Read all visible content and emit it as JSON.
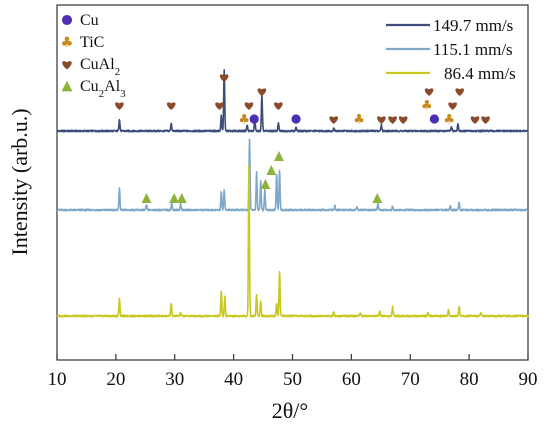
{
  "chart_data": {
    "type": "line",
    "title": "",
    "xlabel": "2θ/°",
    "ylabel": "Intensity (arb.u.)",
    "xlim": [
      10,
      90
    ],
    "x_ticks": [
      "10",
      "20",
      "30",
      "40",
      "50",
      "60",
      "70",
      "80",
      "90"
    ],
    "grid": false,
    "legend_position": "top-right",
    "series": [
      {
        "name": "149.7 mm/s",
        "color": "#3d4d7a",
        "peaks": [
          {
            "x": 20.6,
            "h": 12
          },
          {
            "x": 29.4,
            "h": 8
          },
          {
            "x": 37.9,
            "h": 15
          },
          {
            "x": 38.4,
            "h": 62
          },
          {
            "x": 42.3,
            "h": 6
          },
          {
            "x": 43.6,
            "h": 12
          },
          {
            "x": 44.8,
            "h": 36
          },
          {
            "x": 47.6,
            "h": 8
          },
          {
            "x": 50.6,
            "h": 4
          },
          {
            "x": 57.0,
            "h": 3
          },
          {
            "x": 65.1,
            "h": 6
          },
          {
            "x": 77.0,
            "h": 4
          },
          {
            "x": 78.1,
            "h": 7
          }
        ]
      },
      {
        "name": "115.1 mm/s",
        "color": "#7fa8c8",
        "peaks": [
          {
            "x": 20.6,
            "h": 22
          },
          {
            "x": 25.2,
            "h": 5
          },
          {
            "x": 29.5,
            "h": 7
          },
          {
            "x": 31.0,
            "h": 6
          },
          {
            "x": 37.9,
            "h": 18
          },
          {
            "x": 38.4,
            "h": 20
          },
          {
            "x": 42.7,
            "h": 70
          },
          {
            "x": 43.9,
            "h": 38
          },
          {
            "x": 44.6,
            "h": 30
          },
          {
            "x": 45.3,
            "h": 20
          },
          {
            "x": 47.3,
            "h": 36
          },
          {
            "x": 47.8,
            "h": 40
          },
          {
            "x": 57.2,
            "h": 4
          },
          {
            "x": 60.9,
            "h": 3
          },
          {
            "x": 64.5,
            "h": 6
          },
          {
            "x": 67.0,
            "h": 4
          },
          {
            "x": 76.8,
            "h": 5
          },
          {
            "x": 78.3,
            "h": 8
          }
        ]
      },
      {
        "name": "86.4 mm/s",
        "color": "#c8c820",
        "peaks": [
          {
            "x": 20.6,
            "h": 18
          },
          {
            "x": 29.4,
            "h": 13
          },
          {
            "x": 31.0,
            "h": 3
          },
          {
            "x": 37.9,
            "h": 25
          },
          {
            "x": 38.5,
            "h": 19
          },
          {
            "x": 42.6,
            "h": 150
          },
          {
            "x": 43.9,
            "h": 22
          },
          {
            "x": 44.6,
            "h": 15
          },
          {
            "x": 47.3,
            "h": 13
          },
          {
            "x": 47.8,
            "h": 45
          },
          {
            "x": 57.0,
            "h": 4
          },
          {
            "x": 61.5,
            "h": 3
          },
          {
            "x": 64.8,
            "h": 5
          },
          {
            "x": 67.0,
            "h": 9
          },
          {
            "x": 73.0,
            "h": 4
          },
          {
            "x": 76.5,
            "h": 6
          },
          {
            "x": 78.3,
            "h": 10
          },
          {
            "x": 82.0,
            "h": 3
          }
        ]
      }
    ],
    "phase_legend": [
      {
        "name": "Cu",
        "symbol": "circle",
        "color": "#4b2fb5"
      },
      {
        "name": "TiC",
        "symbol": "club",
        "color": "#c78a1e"
      },
      {
        "name": "CuAl2",
        "symbol": "heart",
        "color": "#8b4a2b"
      },
      {
        "name": "Cu2Al3",
        "symbol": "triangle",
        "color": "#8db33a"
      }
    ],
    "phase_markers": [
      {
        "series": 0,
        "phase": "CuAl2",
        "x": 20.6,
        "level": 1
      },
      {
        "series": 0,
        "phase": "CuAl2",
        "x": 29.4,
        "level": 1
      },
      {
        "series": 0,
        "phase": "CuAl2",
        "x": 37.6,
        "level": 1
      },
      {
        "series": 0,
        "phase": "CuAl2",
        "x": 38.4,
        "level": 3
      },
      {
        "series": 0,
        "phase": "TiC",
        "x": 41.8,
        "level": 0
      },
      {
        "series": 0,
        "phase": "CuAl2",
        "x": 42.6,
        "level": 1
      },
      {
        "series": 0,
        "phase": "Cu",
        "x": 43.5,
        "level": 0
      },
      {
        "series": 0,
        "phase": "CuAl2",
        "x": 44.8,
        "level": 2
      },
      {
        "series": 0,
        "phase": "CuAl2",
        "x": 47.6,
        "level": 1
      },
      {
        "series": 0,
        "phase": "Cu",
        "x": 50.6,
        "level": 0
      },
      {
        "series": 0,
        "phase": "CuAl2",
        "x": 57.0,
        "level": 0
      },
      {
        "series": 0,
        "phase": "TiC",
        "x": 61.3,
        "level": 0
      },
      {
        "series": 0,
        "phase": "CuAl2",
        "x": 65.1,
        "level": 0
      },
      {
        "series": 0,
        "phase": "CuAl2",
        "x": 67.0,
        "level": 0
      },
      {
        "series": 0,
        "phase": "CuAl2",
        "x": 68.8,
        "level": 0
      },
      {
        "series": 0,
        "phase": "CuAl2",
        "x": 73.2,
        "level": 2
      },
      {
        "series": 0,
        "phase": "TiC",
        "x": 72.8,
        "level": 1
      },
      {
        "series": 0,
        "phase": "Cu",
        "x": 74.1,
        "level": 0
      },
      {
        "series": 0,
        "phase": "CuAl2",
        "x": 77.2,
        "level": 1
      },
      {
        "series": 0,
        "phase": "CuAl2",
        "x": 78.4,
        "level": 2
      },
      {
        "series": 0,
        "phase": "TiC",
        "x": 76.6,
        "level": 0
      },
      {
        "series": 0,
        "phase": "CuAl2",
        "x": 81.0,
        "level": 0
      },
      {
        "series": 0,
        "phase": "CuAl2",
        "x": 82.8,
        "level": 0
      },
      {
        "series": 1,
        "phase": "Cu2Al3",
        "x": 25.2,
        "level": 0
      },
      {
        "series": 1,
        "phase": "Cu2Al3",
        "x": 29.9,
        "level": 0
      },
      {
        "series": 1,
        "phase": "Cu2Al3",
        "x": 31.2,
        "level": 0
      },
      {
        "series": 1,
        "phase": "Cu2Al3",
        "x": 45.4,
        "level": 1
      },
      {
        "series": 1,
        "phase": "Cu2Al3",
        "x": 46.4,
        "level": 2
      },
      {
        "series": 1,
        "phase": "Cu2Al3",
        "x": 47.7,
        "level": 3
      },
      {
        "series": 1,
        "phase": "Cu2Al3",
        "x": 64.4,
        "level": 0
      }
    ]
  }
}
